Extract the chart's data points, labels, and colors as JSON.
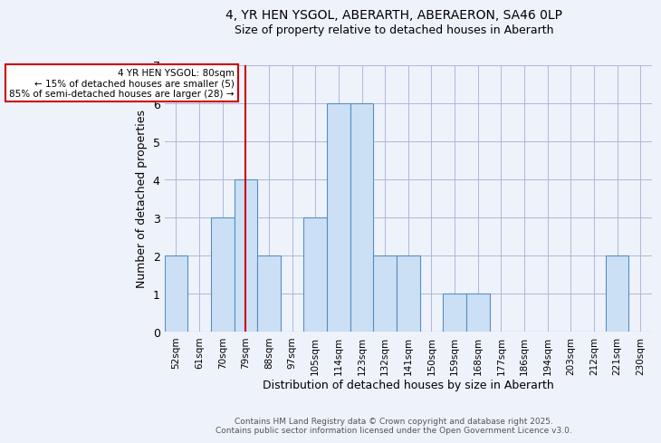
{
  "title_line1": "4, YR HEN YSGOL, ABERARTH, ABERAERON, SA46 0LP",
  "title_line2": "Size of property relative to detached houses in Aberarth",
  "xlabel": "Distribution of detached houses by size in Aberarth",
  "ylabel": "Number of detached properties",
  "footer_line1": "Contains HM Land Registry data © Crown copyright and database right 2025.",
  "footer_line2": "Contains public sector information licensed under the Open Government Licence v3.0.",
  "categories": [
    "52sqm",
    "61sqm",
    "70sqm",
    "79sqm",
    "88sqm",
    "97sqm",
    "105sqm",
    "114sqm",
    "123sqm",
    "132sqm",
    "141sqm",
    "150sqm",
    "159sqm",
    "168sqm",
    "177sqm",
    "186sqm",
    "194sqm",
    "203sqm",
    "212sqm",
    "221sqm",
    "230sqm"
  ],
  "values": [
    2,
    0,
    3,
    4,
    2,
    0,
    3,
    6,
    6,
    2,
    2,
    0,
    1,
    1,
    0,
    0,
    0,
    0,
    0,
    2,
    0
  ],
  "bar_color": "#cce0f5",
  "bar_edge_color": "#5590c0",
  "marker_index": 3,
  "marker_color": "#cc0000",
  "ylim": [
    0,
    7
  ],
  "yticks": [
    0,
    1,
    2,
    3,
    4,
    5,
    6,
    7
  ],
  "annotation_text_line1": "4 YR HEN YSGOL: 80sqm",
  "annotation_text_line2": "← 15% of detached houses are smaller (5)",
  "annotation_text_line3": "85% of semi-detached houses are larger (28) →",
  "annotation_box_color": "#ffffff",
  "annotation_box_edge": "#cc0000",
  "bg_color": "#eef2fb",
  "grid_color": "#b0b8d8"
}
